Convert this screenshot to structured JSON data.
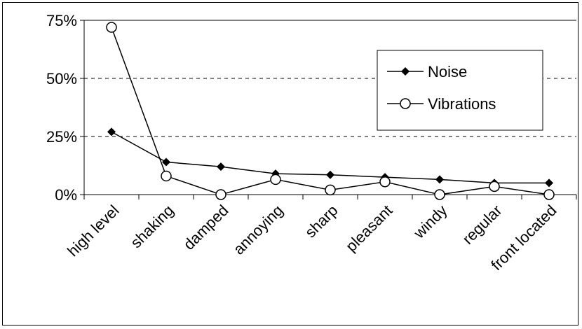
{
  "chart_data": {
    "type": "line",
    "title": "",
    "xlabel": "",
    "ylabel": "",
    "categories": [
      "high level",
      "shaking",
      "damped",
      "annoying",
      "sharp",
      "pleasant",
      "windy",
      "regular",
      "front located"
    ],
    "y_ticks": [
      "0%",
      "25%",
      "50%",
      "75%"
    ],
    "ylim": [
      0,
      75
    ],
    "y_unit": "%",
    "grid": "horizontal dashed at 25% and 50%",
    "legend_position": "top-right",
    "series": [
      {
        "name": "Noise",
        "marker": "filled-diamond",
        "color": "#000000",
        "values": [
          27,
          14,
          12,
          9,
          8.5,
          7.5,
          6.5,
          5,
          5
        ]
      },
      {
        "name": "Vibrations",
        "marker": "open-circle",
        "color": "#000000",
        "values": [
          72,
          8,
          0,
          6.5,
          2,
          5.5,
          0,
          3.5,
          0
        ]
      }
    ]
  }
}
